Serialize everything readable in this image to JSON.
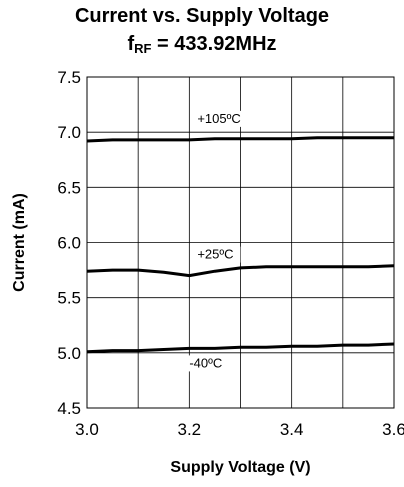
{
  "chart_data": {
    "type": "line",
    "title": "Current vs. Supply Voltage",
    "subtitle_prefix": "f",
    "subtitle_sub": "RF",
    "subtitle_value": " = 433.92MHz",
    "xlabel": "Supply Voltage (V)",
    "ylabel": "Current (mA)",
    "xlim": [
      3.0,
      3.6
    ],
    "ylim": [
      4.5,
      7.5
    ],
    "x_ticks": [
      "3.0",
      "3.2",
      "3.4",
      "3.6"
    ],
    "y_ticks": [
      "4.5",
      "5.0",
      "5.5",
      "6.0",
      "6.5",
      "7.0",
      "7.5"
    ],
    "grid": true,
    "x": [
      3.0,
      3.05,
      3.1,
      3.15,
      3.2,
      3.25,
      3.3,
      3.35,
      3.4,
      3.45,
      3.5,
      3.55,
      3.6
    ],
    "series": [
      {
        "name": "+105ºC",
        "values": [
          6.92,
          6.93,
          6.93,
          6.93,
          6.93,
          6.94,
          6.94,
          6.94,
          6.94,
          6.95,
          6.95,
          6.95,
          6.95
        ]
      },
      {
        "name": "+25ºC",
        "values": [
          5.74,
          5.75,
          5.75,
          5.73,
          5.7,
          5.74,
          5.77,
          5.78,
          5.78,
          5.78,
          5.78,
          5.78,
          5.79
        ]
      },
      {
        "name": "-40ºC",
        "values": [
          5.01,
          5.02,
          5.02,
          5.03,
          5.04,
          5.04,
          5.05,
          5.05,
          5.06,
          5.06,
          5.07,
          5.07,
          5.08
        ]
      }
    ]
  }
}
